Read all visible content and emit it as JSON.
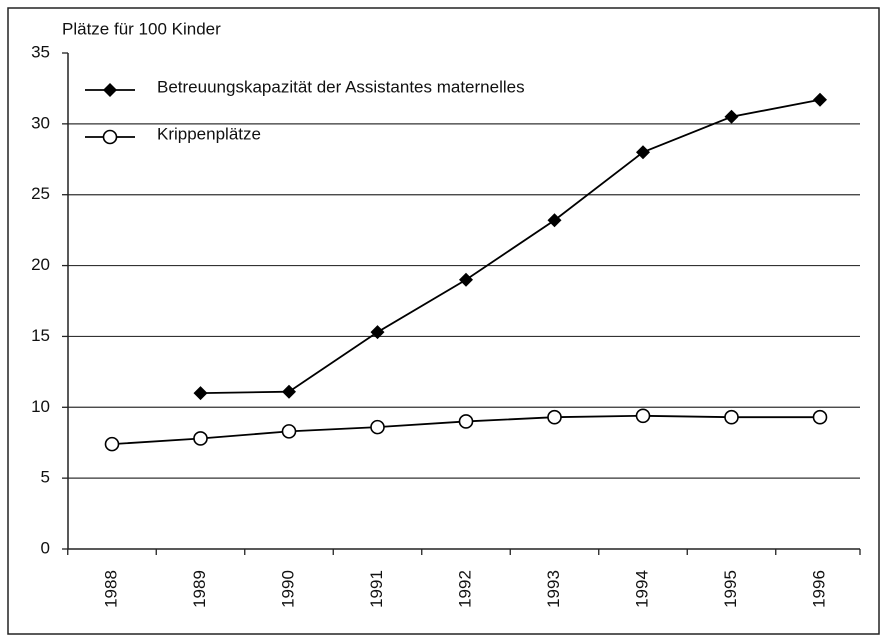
{
  "chart_data": {
    "type": "line",
    "y_label": "Plätze für 100 Kinder",
    "categories": [
      "1988",
      "1989",
      "1990",
      "1991",
      "1992",
      "1993",
      "1994",
      "1995",
      "1996"
    ],
    "series": [
      {
        "name": "Betreuungskapazität der Assistantes maternelles",
        "color": "#000000",
        "marker": "diamond",
        "values": [
          null,
          11.0,
          11.1,
          15.3,
          19.0,
          23.2,
          28.0,
          30.5,
          31.7
        ]
      },
      {
        "name": "Krippenplätze",
        "color": "#000000",
        "marker": "circle",
        "values": [
          7.4,
          7.8,
          8.3,
          8.6,
          9.0,
          9.3,
          9.4,
          9.3,
          9.3
        ]
      }
    ],
    "ylim": [
      0,
      35
    ],
    "yticks": [
      0,
      5,
      10,
      15,
      20,
      25,
      30,
      35
    ],
    "grid": true,
    "legend": "upper-left"
  }
}
